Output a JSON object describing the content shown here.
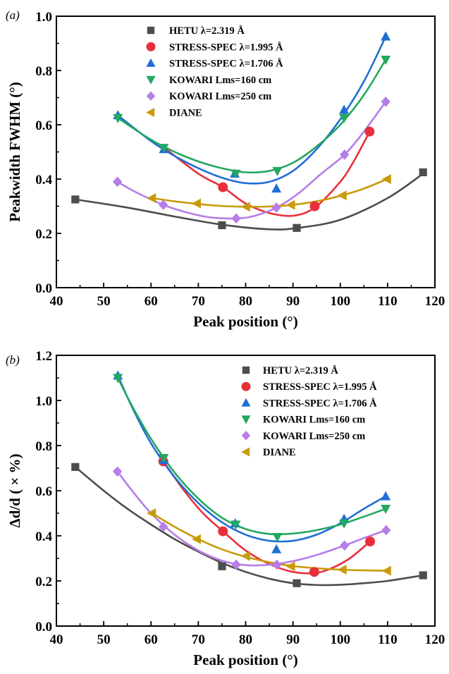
{
  "series_style": [
    {
      "name": "HETU λ=2.319 Å",
      "color": "#4d4d4d",
      "marker": "square"
    },
    {
      "name": "STRESS-SPEC λ=1.995 Å",
      "color": "#e8303a",
      "marker": "circle"
    },
    {
      "name": "STRESS-SPEC λ=1.706 Å",
      "color": "#1f6ed6",
      "marker": "triangle-up"
    },
    {
      "name": "KOWARI Lms=160 cm",
      "color": "#22a85f",
      "marker": "triangle-down"
    },
    {
      "name": "KOWARI Lms=250 cm",
      "color": "#b57ee8",
      "marker": "diamond"
    },
    {
      "name": "DIANE",
      "color": "#c99a0a",
      "marker": "triangle-left"
    }
  ],
  "chart_data": [
    {
      "type": "scatter",
      "panel_label": "(a)",
      "xlabel": "Peak position (°)",
      "ylabel": "Peakwidth FWHM (°)",
      "xlim": [
        40,
        120
      ],
      "ylim": [
        0.0,
        1.0
      ],
      "xticks": [
        40,
        50,
        60,
        70,
        80,
        90,
        100,
        110,
        120
      ],
      "yticks": [
        0.0,
        0.2,
        0.4,
        0.6,
        0.8,
        1.0
      ],
      "ytick_labels": [
        "0.0",
        "0.2",
        "0.4",
        "0.6",
        "0.8",
        "1.0"
      ],
      "grid": false,
      "legend_position": "top-center",
      "series": [
        {
          "name": "HETU λ=2.319 Å",
          "x": [
            44,
            75,
            90.8,
            117.5
          ],
          "y": [
            0.325,
            0.23,
            0.22,
            0.425
          ]
        },
        {
          "name": "STRESS-SPEC λ=1.995 Å",
          "x": [
            75.2,
            94.6,
            106.2
          ],
          "y": [
            0.37,
            0.3,
            0.575
          ]
        },
        {
          "name": "STRESS-SPEC λ=1.706 Å",
          "x": [
            53,
            62.7,
            77.7,
            86.5,
            100.8,
            109.6
          ],
          "y": [
            0.635,
            0.51,
            0.42,
            0.365,
            0.655,
            0.925
          ]
        },
        {
          "name": "KOWARI Lms=160 cm",
          "x": [
            53,
            62.7,
            77.9,
            86.7,
            100.8,
            109.6
          ],
          "y": [
            0.625,
            0.515,
            0.42,
            0.43,
            0.625,
            0.84
          ]
        },
        {
          "name": "KOWARI Lms=250 cm",
          "x": [
            52.9,
            62.6,
            78,
            86.5,
            100.9,
            109.6
          ],
          "y": [
            0.39,
            0.305,
            0.255,
            0.295,
            0.49,
            0.685
          ]
        },
        {
          "name": "DIANE",
          "x": [
            60.2,
            69.7,
            80.1,
            89.6,
            100.5,
            109.9
          ],
          "y": [
            0.33,
            0.31,
            0.298,
            0.305,
            0.34,
            0.4
          ]
        }
      ],
      "fit_curves": [
        {
          "name": "HETU λ=2.319 Å",
          "x": [
            44,
            55,
            65,
            75,
            85,
            91,
            100,
            110,
            117.5
          ],
          "y": [
            0.325,
            0.295,
            0.262,
            0.232,
            0.215,
            0.22,
            0.25,
            0.33,
            0.42
          ]
        },
        {
          "name": "STRESS-SPEC λ=1.995 Å",
          "x": [
            62.5,
            70,
            75.2,
            80,
            85,
            90,
            94.6,
            100,
            103,
            106.2
          ],
          "y": [
            0.52,
            0.42,
            0.37,
            0.31,
            0.275,
            0.265,
            0.295,
            0.39,
            0.47,
            0.575
          ]
        },
        {
          "name": "STRESS-SPEC λ=1.706 Å",
          "x": [
            53,
            60,
            65,
            70,
            75,
            80,
            85,
            90,
            95,
            100,
            105,
            109.6
          ],
          "y": [
            0.635,
            0.54,
            0.485,
            0.44,
            0.405,
            0.385,
            0.39,
            0.43,
            0.51,
            0.62,
            0.76,
            0.925
          ]
        },
        {
          "name": "KOWARI Lms=160 cm",
          "x": [
            53,
            60,
            65,
            70,
            75,
            80,
            85,
            90,
            95,
            100,
            105,
            109.6
          ],
          "y": [
            0.625,
            0.545,
            0.5,
            0.465,
            0.44,
            0.425,
            0.43,
            0.46,
            0.52,
            0.6,
            0.71,
            0.84
          ]
        },
        {
          "name": "KOWARI Lms=250 cm",
          "x": [
            52.9,
            57,
            62.6,
            67,
            72,
            78,
            82,
            86.5,
            91,
            96,
            100.9,
            105,
            109.6
          ],
          "y": [
            0.39,
            0.35,
            0.305,
            0.28,
            0.26,
            0.255,
            0.265,
            0.295,
            0.345,
            0.42,
            0.49,
            0.575,
            0.685
          ]
        },
        {
          "name": "DIANE",
          "x": [
            60.2,
            65,
            70,
            75,
            80,
            85,
            90,
            95,
            100,
            105,
            109.9
          ],
          "y": [
            0.33,
            0.318,
            0.308,
            0.301,
            0.298,
            0.299,
            0.305,
            0.318,
            0.338,
            0.365,
            0.4
          ]
        }
      ]
    },
    {
      "type": "scatter",
      "panel_label": "(b)",
      "xlabel": "Peak position (°)",
      "ylabel": "Δd/d ( × %)",
      "xlim": [
        40,
        120
      ],
      "ylim": [
        0.0,
        1.2
      ],
      "xticks": [
        40,
        50,
        60,
        70,
        80,
        90,
        100,
        110,
        120
      ],
      "yticks": [
        0.0,
        0.2,
        0.4,
        0.6,
        0.8,
        1.0,
        1.2
      ],
      "ytick_labels": [
        "0.0",
        "0.2",
        "0.4",
        "0.6",
        "0.8",
        "1.0",
        "1.2"
      ],
      "grid": false,
      "legend_position": "top-right",
      "series": [
        {
          "name": "HETU λ=2.319 Å",
          "x": [
            44,
            75,
            90.8,
            117.5
          ],
          "y": [
            0.705,
            0.265,
            0.19,
            0.225
          ]
        },
        {
          "name": "STRESS-SPEC λ=1.995 Å",
          "x": [
            62.6,
            75.2,
            94.5,
            106.3
          ],
          "y": [
            0.73,
            0.42,
            0.24,
            0.375
          ]
        },
        {
          "name": "STRESS-SPEC λ=1.706 Å",
          "x": [
            53,
            62.7,
            77.8,
            86.5,
            100.8,
            109.6
          ],
          "y": [
            1.11,
            0.735,
            0.455,
            0.34,
            0.475,
            0.575
          ]
        },
        {
          "name": "KOWARI Lms=160 cm",
          "x": [
            53,
            62.7,
            77.9,
            86.7,
            100.8,
            109.6
          ],
          "y": [
            1.1,
            0.745,
            0.45,
            0.395,
            0.455,
            0.52
          ]
        },
        {
          "name": "KOWARI Lms=250 cm",
          "x": [
            52.9,
            62.6,
            78,
            86.6,
            100.9,
            109.7
          ],
          "y": [
            0.685,
            0.44,
            0.272,
            0.272,
            0.357,
            0.425
          ]
        },
        {
          "name": "DIANE",
          "x": [
            60.2,
            69.7,
            80.1,
            89.6,
            100.5,
            109.9
          ],
          "y": [
            0.5,
            0.385,
            0.31,
            0.265,
            0.25,
            0.245
          ]
        }
      ],
      "fit_curves": [
        {
          "name": "HETU λ=2.319 Å",
          "x": [
            44,
            50,
            55,
            60,
            65,
            70,
            75,
            80,
            85,
            90,
            95,
            100,
            105,
            110,
            117.5
          ],
          "y": [
            0.705,
            0.6,
            0.52,
            0.45,
            0.385,
            0.33,
            0.28,
            0.24,
            0.21,
            0.19,
            0.182,
            0.183,
            0.19,
            0.2,
            0.225
          ]
        },
        {
          "name": "STRESS-SPEC λ=1.995 Å",
          "x": [
            62.6,
            67,
            71,
            75.2,
            80,
            85,
            90,
            94.5,
            98,
            102,
            106.3
          ],
          "y": [
            0.73,
            0.6,
            0.5,
            0.42,
            0.335,
            0.275,
            0.24,
            0.235,
            0.255,
            0.3,
            0.375
          ]
        },
        {
          "name": "STRESS-SPEC λ=1.706 Å",
          "x": [
            53,
            56,
            60,
            65,
            70,
            75,
            80,
            85,
            90,
            95,
            100,
            105,
            109.6
          ],
          "y": [
            1.11,
            0.97,
            0.81,
            0.66,
            0.545,
            0.46,
            0.405,
            0.378,
            0.378,
            0.405,
            0.455,
            0.52,
            0.575
          ]
        },
        {
          "name": "KOWARI Lms=160 cm",
          "x": [
            53,
            56,
            60,
            65,
            70,
            75,
            80,
            85,
            90,
            95,
            100,
            105,
            109.6
          ],
          "y": [
            1.1,
            0.975,
            0.83,
            0.68,
            0.565,
            0.48,
            0.43,
            0.408,
            0.41,
            0.425,
            0.45,
            0.485,
            0.52
          ]
        },
        {
          "name": "KOWARI Lms=250 cm",
          "x": [
            52.9,
            56,
            60,
            65,
            70,
            75,
            80,
            85,
            90,
            95,
            100.9,
            105,
            109.7
          ],
          "y": [
            0.685,
            0.6,
            0.5,
            0.405,
            0.335,
            0.29,
            0.27,
            0.272,
            0.288,
            0.315,
            0.357,
            0.39,
            0.425
          ]
        },
        {
          "name": "DIANE",
          "x": [
            60.2,
            65,
            70,
            75,
            80,
            85,
            90,
            95,
            100,
            105,
            109.9
          ],
          "y": [
            0.5,
            0.44,
            0.385,
            0.34,
            0.307,
            0.283,
            0.266,
            0.256,
            0.25,
            0.247,
            0.245
          ]
        }
      ]
    }
  ]
}
